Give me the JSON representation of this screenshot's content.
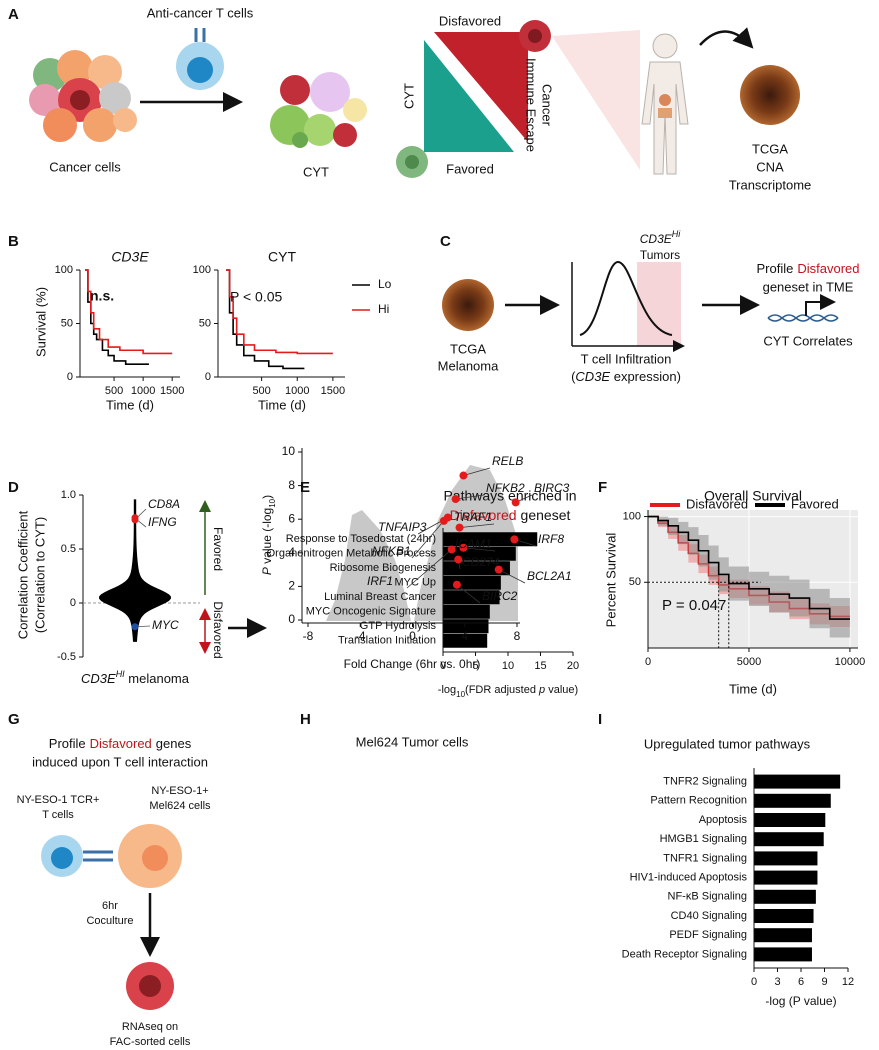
{
  "panel_labels": [
    "A",
    "B",
    "C",
    "D",
    "E",
    "F",
    "G",
    "H",
    "I"
  ],
  "panels": {
    "A": {
      "t_cells": "Anti-cancer T cells",
      "cancer_cells": "Cancer cells",
      "cyt_cells": "CYT",
      "disfavored": "Disfavored",
      "favored": "Favored",
      "cyt_axis": "CYT",
      "escape": [
        "Cancer",
        "Immune Escape"
      ],
      "tcga": [
        "TCGA",
        "CNA",
        "Transcriptome"
      ]
    },
    "C": {
      "tumors": [
        "CD3E",
        "Hi",
        "Tumors"
      ],
      "profile": [
        "Profile",
        "Disfavored",
        "geneset in TME"
      ],
      "tcga": [
        "TCGA",
        "Melanoma"
      ],
      "axis": "T cell Infiltration",
      "axis_2": [
        "(",
        "CD3E",
        " expression)"
      ],
      "correlates": "CYT Correlates"
    },
    "G": {
      "line_1": [
        "Profile",
        "Disfavored",
        "genes"
      ],
      "line_2": "induced upon T cell interaction",
      "tcr": [
        "NY-ESO-1 TCR+",
        "T cells"
      ],
      "mel": [
        "NY-ESO-1+",
        "Mel624 cells"
      ],
      "coculture": [
        "6hr",
        "Coculture"
      ],
      "rnaseq": [
        "RNAseq on",
        "FAC-sorted cells"
      ]
    }
  },
  "chart_data": [
    {
      "type": "survival",
      "title": "CD3E",
      "title_italic": true,
      "annotation": "n.s.",
      "ylabel": "Survival (%)",
      "xlabel": "Time (d)",
      "xlim": [
        0,
        1600
      ],
      "ylim": [
        0,
        100
      ],
      "xticks": [
        500,
        1000,
        1500
      ],
      "yticks": [
        0,
        50,
        100
      ],
      "series": [
        {
          "color": "#000000",
          "x": [
            0,
            50,
            100,
            150,
            200,
            300,
            400,
            500,
            700,
            1100
          ],
          "values": [
            100,
            70,
            50,
            40,
            35,
            25,
            20,
            15,
            12,
            12
          ]
        },
        {
          "color": "#e41a1c",
          "x": [
            0,
            50,
            100,
            150,
            250,
            400,
            600,
            1000,
            1500
          ],
          "values": [
            100,
            80,
            60,
            45,
            35,
            28,
            25,
            22,
            22
          ]
        }
      ]
    },
    {
      "type": "survival",
      "title": "CYT",
      "annotation": "P < 0.05",
      "xlabel": "Time (d)",
      "legend": "right",
      "xlim": [
        0,
        1600
      ],
      "ylim": [
        0,
        100
      ],
      "xticks": [
        500,
        1000,
        1500
      ],
      "yticks": [
        0,
        50,
        100
      ],
      "series": [
        {
          "name": "Lo",
          "color": "#000000",
          "x": [
            0,
            50,
            100,
            150,
            250,
            400,
            600,
            800,
            1100
          ],
          "values": [
            100,
            60,
            40,
            30,
            20,
            15,
            10,
            8,
            8
          ]
        },
        {
          "name": "Hi",
          "color": "#e41a1c",
          "x": [
            0,
            50,
            100,
            150,
            250,
            400,
            700,
            1000,
            1500
          ],
          "values": [
            100,
            75,
            55,
            40,
            30,
            25,
            23,
            22,
            22
          ]
        }
      ]
    },
    {
      "type": "violin",
      "ylabel": [
        "Correlation Coefficient",
        "(Correlation to CYT)"
      ],
      "xlabel": [
        "CD3E",
        "HI",
        " melanoma"
      ],
      "ylim": [
        -0.5,
        1
      ],
      "yticks": [
        -0.5,
        0,
        0.5,
        {
          "value": 1,
          "label": "1.0"
        }
      ],
      "genes": [
        "CD8A",
        "IFNG",
        "MYC"
      ],
      "values": [
        0.79,
        0.77,
        -0.22
      ],
      "colors": [
        "#e41a1c",
        "#e41a1c",
        "#1f4e9c"
      ],
      "favored": "Favored",
      "disfavored": "Disfavored"
    },
    {
      "type": "barh",
      "title": [
        "Pathways enriched in",
        "Disfavored",
        "geneset"
      ],
      "color": "#000000",
      "categories": [
        "Response to Tosedostat (24hr)",
        "Organonitrogen Metabolic Process",
        "Ribosome Biogenesis",
        "MYC Up",
        "Luminal Breast Cancer",
        "MYC Oncogenic Signature",
        "GTP Hydrolysis",
        "Translation Initiation"
      ],
      "values": [
        14.5,
        11.2,
        10.3,
        8.9,
        8.7,
        7.2,
        7.0,
        6.8
      ],
      "xlim": [
        0,
        20
      ],
      "xticks": [
        0,
        5,
        10,
        15,
        20
      ],
      "xlabel": [
        "-log",
        "10",
        "(FDR adjusted ",
        "p",
        " value)"
      ]
    },
    {
      "type": "survival",
      "title": "Overall Survival",
      "annotation": "P = 0.047",
      "ylabel": "Percent Survival",
      "xlabel": "Time (d)",
      "legend": "top",
      "grid": true,
      "median_guides": true,
      "xlim": [
        0,
        10400
      ],
      "ylim": [
        0,
        105
      ],
      "xticks": [
        0,
        5000,
        10000
      ],
      "yticks": [
        50,
        100
      ],
      "x": [
        0,
        500,
        1000,
        1500,
        2000,
        2500,
        3000,
        3500,
        4000,
        5000,
        6000,
        7000,
        8000,
        9000,
        10000
      ],
      "series": [
        {
          "name": "Disfavored",
          "color": "#e41a1c",
          "label_color": "#c0141c",
          "band_color": "#f08080",
          "values": [
            100,
            95,
            88,
            80,
            72,
            64,
            55,
            48,
            45,
            40,
            35,
            30,
            26,
            24,
            24
          ],
          "ci_low": [
            100,
            92,
            83,
            74,
            65,
            57,
            48,
            41,
            38,
            33,
            27,
            22,
            18,
            16,
            16
          ],
          "ci_high": [
            100,
            98,
            93,
            86,
            79,
            71,
            62,
            55,
            52,
            47,
            43,
            38,
            34,
            32,
            32
          ]
        },
        {
          "name": "Favored",
          "color": "#000000",
          "label_color": "#2f5e1e",
          "band_color": "#8c8c8c",
          "values": [
            100,
            97,
            93,
            88,
            82,
            74,
            65,
            56,
            49,
            45,
            41,
            38,
            30,
            22,
            22
          ],
          "ci_low": [
            100,
            93,
            86,
            79,
            71,
            62,
            52,
            43,
            36,
            32,
            27,
            24,
            15,
            8,
            8
          ],
          "ci_high": [
            100,
            100,
            99,
            96,
            92,
            86,
            78,
            69,
            62,
            58,
            55,
            52,
            45,
            38,
            38
          ]
        }
      ]
    },
    {
      "type": "scatter",
      "title": "Mel624 Tumor cells",
      "xlabel": "Fold Change (6hr vs. 0hr)",
      "ylabel": [
        "P",
        " value (-log",
        "10",
        ")"
      ],
      "xlim": [
        -8,
        8
      ],
      "ylim": [
        0,
        10
      ],
      "xticks": [
        -8,
        -4,
        0,
        4,
        8
      ],
      "yticks": [
        0,
        2,
        4,
        6,
        8,
        10
      ],
      "color": "#e41a1c",
      "names": [
        "RELB",
        "NFKB2",
        "BIRC3",
        "TNFAIP3",
        "NFKB1",
        "TRAF1",
        "IRF8",
        "ICAM1",
        "IRF1",
        "CD274",
        "BCL2A1",
        "BIRC2"
      ],
      "x": [
        3.9,
        3.3,
        7.9,
        2.7,
        2.4,
        3.6,
        7.8,
        3.9,
        3.0,
        3.5,
        6.6,
        3.4
      ],
      "values": [
        8.6,
        7.2,
        7.0,
        6.1,
        5.9,
        5.5,
        4.8,
        4.3,
        4.2,
        3.6,
        3.0,
        2.1
      ]
    },
    {
      "type": "barh",
      "title": [
        "Upregulated tumor pathways"
      ],
      "color": "#000000",
      "categories": [
        "TNFR2 Signaling",
        "Pattern Recognition",
        "Apoptosis",
        "HMGB1 Signaling",
        "TNFR1 Signaling",
        "HIV1-induced Apoptosis",
        "NF-κB Signaling",
        "CD40 Signaling",
        "PEDF Signaling",
        "Death Receptor Signaling"
      ],
      "values": [
        11.0,
        9.8,
        9.1,
        8.9,
        8.1,
        8.1,
        7.9,
        7.6,
        7.4,
        7.4
      ],
      "xlim": [
        0,
        12
      ],
      "xticks": [
        0,
        3,
        6,
        9,
        12
      ],
      "xlabel": [
        "-log (P value)"
      ]
    }
  ]
}
